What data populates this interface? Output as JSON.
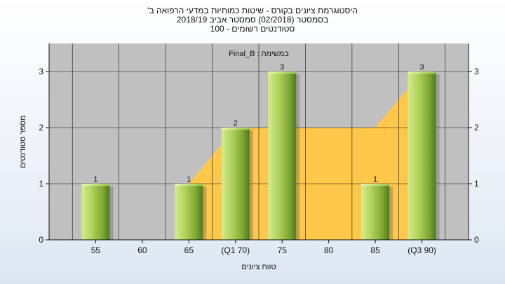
{
  "chart_data": {
    "type": "bar",
    "title_lines": [
      "היסטוגרמת ציונים בקורס - שיטות כמותיות במדעי הרפואה ב'",
      "בסמסטר (02/2018) סמסטר אביב 2018/19",
      "סטודנטים רשומים - 100"
    ],
    "annotation": "במשימה : Final_B",
    "xlabel": "טווח ציונים",
    "ylabel": "מספר סטודנטים",
    "categories": [
      "55",
      "60",
      "65",
      "(Q1 70)",
      "75",
      "80",
      "85",
      "(Q3 90)"
    ],
    "values": [
      1,
      0,
      1,
      2,
      3,
      0,
      1,
      3
    ],
    "value_labels": [
      "1",
      "",
      "1",
      "2",
      "3",
      "",
      "1",
      "3"
    ],
    "ylim": [
      0,
      3.5
    ],
    "yticks": [
      "0",
      "1",
      "2",
      "3"
    ],
    "grid": true,
    "quartile_band": {
      "x_points": [
        "65",
        "(Q1 70)",
        "85",
        "(Q3 90)"
      ],
      "y_values": [
        1,
        2,
        2,
        3
      ]
    },
    "colors": {
      "bar_light": "#d6ec8e",
      "bar_mid": "#9cc443",
      "bar_dark": "#4e7a1e",
      "band": "#ffc84a",
      "plot_bg": "#c0c0c0",
      "grid": "#111111"
    }
  }
}
